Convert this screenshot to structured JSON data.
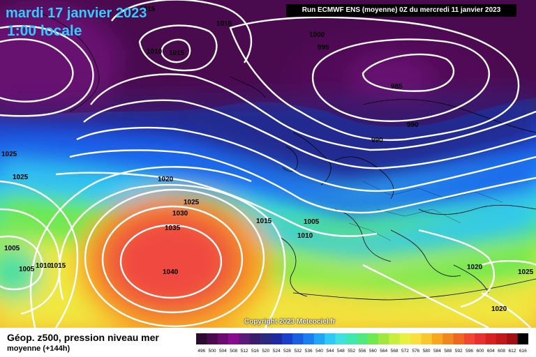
{
  "header": {
    "date": "mardi 17 janvier 2023",
    "time": "1:00 locale",
    "run_info": "Run ECMWF ENS (moyenne) 0Z du mercredi 11 janvier 2023"
  },
  "footer": {
    "title": "Géop. z500, pression niveau mer",
    "subtitle": "moyenne  (+144h)",
    "copyright": "Copyright 2023 Meteociel.fr"
  },
  "isobar_labels": [
    {
      "value": "1015",
      "pos": "top-center"
    },
    {
      "value": "1015",
      "pos": "top-center-2"
    },
    {
      "value": "1010",
      "pos": "greenland-low"
    },
    {
      "value": "1015",
      "pos": "greenland-low-2"
    },
    {
      "value": "1000",
      "pos": "scandinavia"
    },
    {
      "value": "995",
      "pos": "scandinavia"
    },
    {
      "value": "985",
      "pos": "scandinavia-center"
    },
    {
      "value": "990",
      "pos": "scandinavia-south"
    },
    {
      "value": "990",
      "pos": "baltic"
    },
    {
      "value": "1025",
      "pos": "west"
    },
    {
      "value": "1025",
      "pos": "west-2"
    },
    {
      "value": "1020",
      "pos": "mid-atlantic"
    },
    {
      "value": "1025",
      "pos": "azores-ring"
    },
    {
      "value": "1030",
      "pos": "azores-ring"
    },
    {
      "value": "1035",
      "pos": "azores-ring"
    },
    {
      "value": "1040",
      "pos": "azores-center"
    },
    {
      "value": "1015",
      "pos": "bay-of-biscay"
    },
    {
      "value": "1005",
      "pos": "france"
    },
    {
      "value": "1010",
      "pos": "france-south"
    },
    {
      "value": "1005",
      "pos": "far-west"
    },
    {
      "value": "1005",
      "pos": "far-west-2"
    },
    {
      "value": "1010",
      "pos": "far-west-3"
    },
    {
      "value": "1015",
      "pos": "far-west-4"
    },
    {
      "value": "1020",
      "pos": "east-med"
    },
    {
      "value": "1025",
      "pos": "east-edge"
    },
    {
      "value": "1020",
      "pos": "east-med-south"
    }
  ],
  "color_scale": {
    "labels": [
      "496",
      "500",
      "504",
      "508",
      "512",
      "516",
      "520",
      "524",
      "528",
      "532",
      "536",
      "540",
      "544",
      "548",
      "552",
      "556",
      "560",
      "564",
      "568",
      "572",
      "576",
      "580",
      "584",
      "588",
      "592",
      "596",
      "600",
      "604",
      "608",
      "612",
      "616"
    ],
    "colors": [
      "#2b0b2e",
      "#4a0a4e",
      "#6b0b70",
      "#8a0a8e",
      "#5a1a7a",
      "#3a1e6a",
      "#2d2a7e",
      "#1e2a9e",
      "#1a3fc8",
      "#1a5fe0",
      "#1a80f0",
      "#20a6f5",
      "#30c8f5",
      "#40e0e0",
      "#40e8b0",
      "#50e880",
      "#70e850",
      "#a0e840",
      "#c8ee40",
      "#e8f040",
      "#f8e040",
      "#f8c830",
      "#f8a820",
      "#f08820",
      "#f06820",
      "#f04830",
      "#e83030",
      "#d82020",
      "#c01818",
      "#a01010",
      "#000000"
    ]
  }
}
